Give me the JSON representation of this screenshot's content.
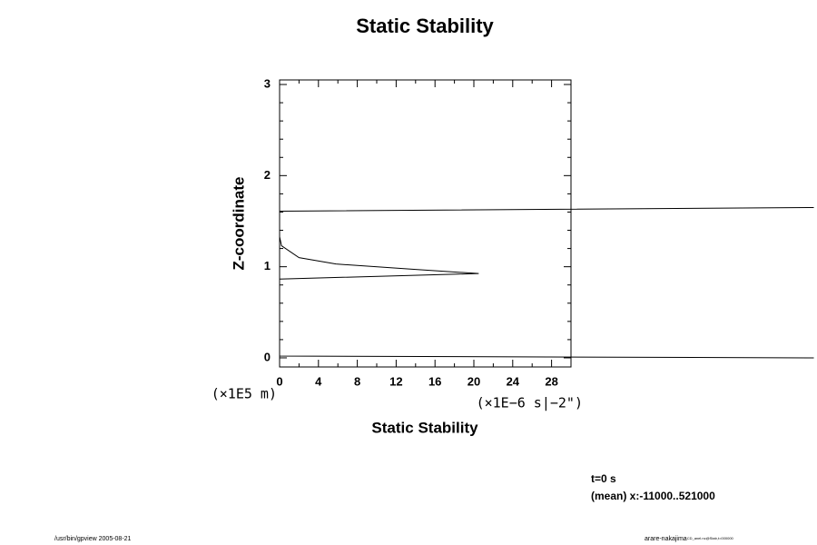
{
  "chart_data": {
    "type": "line",
    "title": "Static Stability",
    "xlabel": "Static Stability",
    "ylabel": "Z-coordinate",
    "xunit": "(×1E−6 s|−2\")",
    "yunit": "(×1E5 m)",
    "x": [
      55,
      0,
      0,
      20.5,
      14,
      5.8,
      2,
      0.2,
      0,
      0,
      55
    ],
    "series": [
      {
        "name": "Static Stability",
        "color": "#000000",
        "values": [
          0.0,
          0.02,
          0.865,
          0.925,
          0.97,
          1.03,
          1.1,
          1.23,
          1.33,
          1.61,
          1.65
        ]
      }
    ],
    "xlim": [
      0,
      30
    ],
    "ylim": [
      -0.1,
      3.05
    ],
    "xticks": [
      0,
      4,
      8,
      12,
      16,
      20,
      24,
      28
    ],
    "yticks": [
      0,
      1,
      2,
      3
    ],
    "xminorticks": [
      2,
      6,
      10,
      14,
      18,
      22,
      26,
      30
    ],
    "yminorticks": [
      0.2,
      0.4,
      0.6,
      0.8,
      1.2,
      1.4,
      1.6,
      1.8,
      2.2,
      2.4,
      2.6,
      2.8
    ],
    "annotations": [
      "t=0 s",
      "(mean) x:-11000..521000"
    ],
    "footer_left": "/usr/bin/gpview 2005-08-21",
    "footer_right": "arare-nakajima",
    "footer_right_small": "CD_anel.nc@Stab,t=000000"
  }
}
